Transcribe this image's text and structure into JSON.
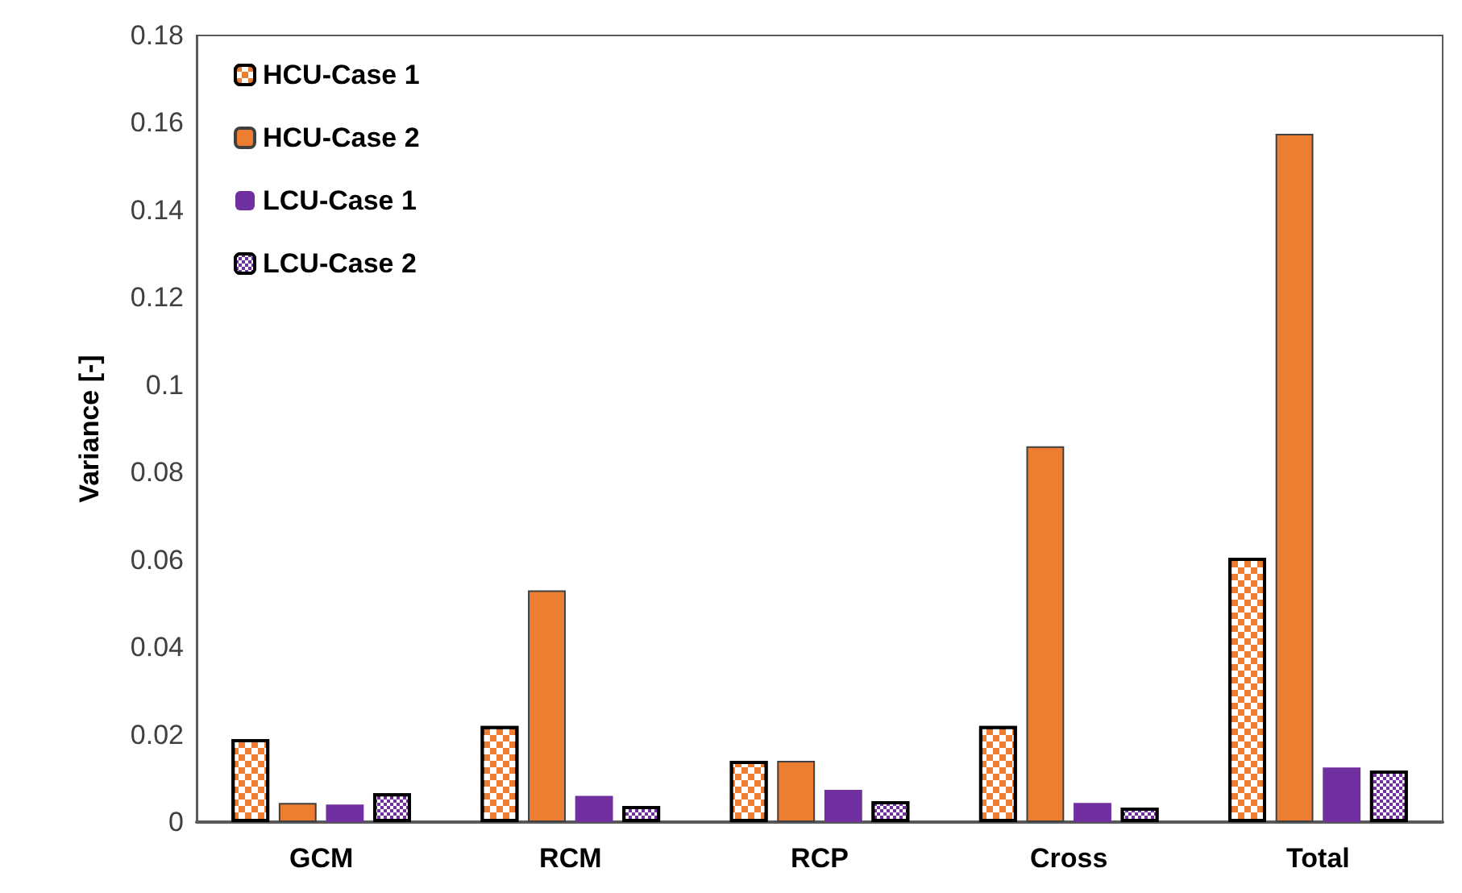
{
  "chart_data": {
    "type": "bar",
    "ylabel": "Variance [-]",
    "categories": [
      "GCM",
      "RCM",
      "RCP",
      "Cross",
      "Total"
    ],
    "series": [
      {
        "name": "HCU-Case 1",
        "color": "#ed7d31",
        "values": [
          0.019,
          0.022,
          0.014,
          0.022,
          0.0605
        ]
      },
      {
        "name": "HCU-Case 2",
        "color": "#ed7d31",
        "values": [
          0.0044,
          0.053,
          0.014,
          0.086,
          0.1575
        ]
      },
      {
        "name": "LCU-Case 1",
        "color": "#7030a0",
        "values": [
          0.004,
          0.006,
          0.0074,
          0.0044,
          0.0125
        ]
      },
      {
        "name": "LCU-Case 2",
        "color": "#7030a0",
        "values": [
          0.0066,
          0.0037,
          0.0048,
          0.0033,
          0.0118
        ]
      }
    ],
    "ylim": [
      0,
      0.18
    ],
    "yticks": [
      0,
      0.02,
      0.04,
      0.06,
      0.08,
      0.1,
      0.12,
      0.14,
      0.16,
      0.18
    ],
    "grid": false,
    "legend": "top left"
  }
}
